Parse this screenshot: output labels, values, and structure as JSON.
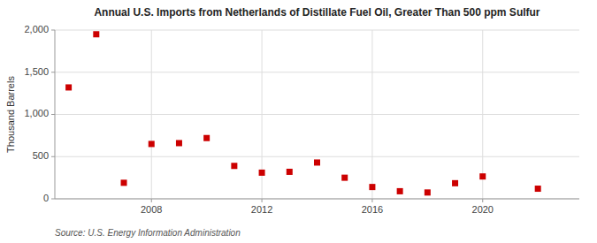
{
  "chart_data": {
    "type": "scatter",
    "title": "Annual U.S. Imports from Netherlands of Distillate Fuel Oil, Greater Than 500 ppm Sulfur",
    "ylabel": "Thousand Barrels",
    "annotations": [
      "Source: U.S. Energy Information Administration"
    ],
    "x": [
      2005,
      2006,
      2007,
      2008,
      2009,
      2010,
      2011,
      2012,
      2013,
      2014,
      2015,
      2016,
      2017,
      2018,
      2019,
      2020,
      2022
    ],
    "values": [
      1320,
      1950,
      190,
      650,
      660,
      720,
      390,
      310,
      320,
      430,
      250,
      140,
      90,
      75,
      185,
      265,
      120
    ],
    "color": "#cc0000",
    "marker": "square",
    "xlim": [
      2004.5,
      2023.5
    ],
    "xticks": [
      2008,
      2012,
      2016,
      2020
    ],
    "ylim": [
      0,
      2000
    ],
    "yticks": [
      0,
      500,
      {
        "value": 1000,
        "label": "1,000"
      },
      {
        "value": 1500,
        "label": "1,500"
      },
      {
        "value": 2000,
        "label": "2,000"
      }
    ],
    "grid": true
  }
}
